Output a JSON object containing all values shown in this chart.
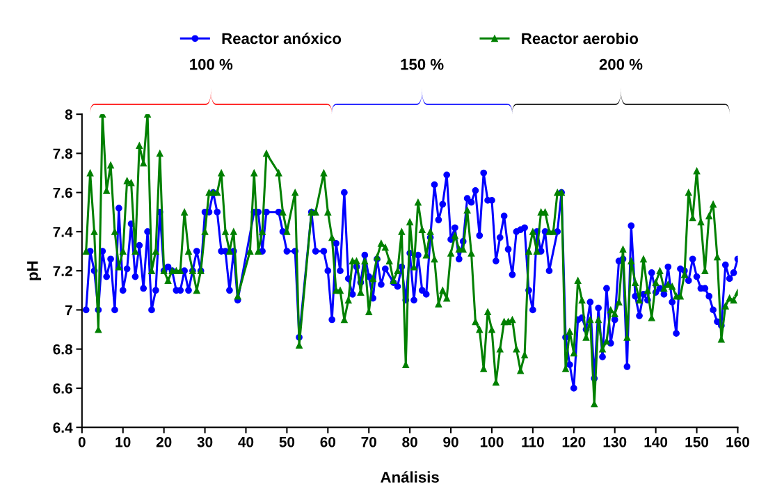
{
  "chart_data": {
    "type": "line",
    "xlabel": "Análisis",
    "ylabel": "pH",
    "xlim": [
      0,
      160
    ],
    "xticks": [
      0,
      10,
      20,
      30,
      40,
      50,
      60,
      70,
      80,
      90,
      100,
      110,
      120,
      130,
      140,
      150,
      160
    ],
    "ylim": [
      6.4,
      8
    ],
    "yticks": [
      6.4,
      6.6,
      6.8,
      7,
      7.2,
      7.4,
      7.6,
      7.8,
      8
    ],
    "grid": false,
    "legend": "top",
    "line_style": "solid",
    "annotations": [
      "100 %",
      "150 %",
      "200 %"
    ],
    "series": [
      {
        "name": "Reactor anóxico",
        "color": "#0000ff",
        "marker": "circle",
        "x": [
          1,
          2,
          3,
          4,
          5,
          6,
          7,
          8,
          9,
          10,
          11,
          12,
          13,
          14,
          15,
          16,
          17,
          18,
          19,
          20,
          21,
          22,
          23,
          24,
          25,
          26,
          27,
          28,
          29,
          30,
          31,
          32,
          33,
          34,
          35,
          36,
          37,
          38,
          42,
          43,
          44,
          45,
          48,
          49,
          50,
          52,
          53,
          56,
          57,
          59,
          60,
          61,
          62,
          63,
          64,
          65,
          66,
          67,
          68,
          69,
          70,
          71,
          72,
          73,
          74,
          76,
          77,
          78,
          79,
          80,
          81,
          82,
          83,
          84,
          85,
          86,
          87,
          88,
          89,
          90,
          91,
          92,
          93,
          94,
          95,
          96,
          97,
          98,
          99,
          100,
          101,
          102,
          103,
          104,
          105,
          106,
          107,
          108,
          109,
          110,
          111,
          112,
          113,
          114,
          116,
          117,
          118,
          119,
          120,
          121,
          122,
          123,
          124,
          125,
          126,
          127,
          128,
          129,
          130,
          131,
          132,
          133,
          134,
          135,
          136,
          137,
          138,
          139,
          140,
          141,
          142,
          143,
          144,
          145,
          146,
          147,
          148,
          149,
          150,
          151,
          152,
          153,
          154,
          155,
          156,
          157,
          158,
          159,
          160
        ],
        "values": [
          7.0,
          7.3,
          7.2,
          7.0,
          7.3,
          7.17,
          7.26,
          7.0,
          7.52,
          7.1,
          7.21,
          7.44,
          7.17,
          7.33,
          7.11,
          7.4,
          7.0,
          7.1,
          7.5,
          7.2,
          7.22,
          7.2,
          7.1,
          7.1,
          7.2,
          7.1,
          7.2,
          7.3,
          7.2,
          7.5,
          7.5,
          7.6,
          7.5,
          7.3,
          7.3,
          7.1,
          7.3,
          7.05,
          7.5,
          7.5,
          7.3,
          7.5,
          7.5,
          7.4,
          7.3,
          7.3,
          6.86,
          7.5,
          7.3,
          7.3,
          7.2,
          6.95,
          7.34,
          7.2,
          7.6,
          7.16,
          7.08,
          7.22,
          7.14,
          7.28,
          7.17,
          7.06,
          7.26,
          7.13,
          7.21,
          7.14,
          7.12,
          7.22,
          7.05,
          7.29,
          7.05,
          7.28,
          7.1,
          7.08,
          7.37,
          7.64,
          7.46,
          7.54,
          7.69,
          7.36,
          7.42,
          7.26,
          7.35,
          7.57,
          7.55,
          7.61,
          7.38,
          7.7,
          7.56,
          7.56,
          7.25,
          7.37,
          7.48,
          7.31,
          7.18,
          7.4,
          7.41,
          7.42,
          7.1,
          7.0,
          7.4,
          7.3,
          7.4,
          7.2,
          7.4,
          7.6,
          6.86,
          6.72,
          6.6,
          6.95,
          6.96,
          6.9,
          7.04,
          6.65,
          7.01,
          6.76,
          7.11,
          6.83,
          6.95,
          7.25,
          7.26,
          6.71,
          7.43,
          7.07,
          6.97,
          7.08,
          7.05,
          7.19,
          7.09,
          7.11,
          7.08,
          7.22,
          7.04,
          6.88,
          7.21,
          7.2,
          7.15,
          7.26,
          7.17,
          7.11,
          7.11,
          7.07,
          7.0,
          6.94,
          6.92,
          7.23,
          7.16,
          7.19,
          7.26
        ]
      },
      {
        "name": "Reactor aerobio",
        "color": "#008000",
        "marker": "triangle",
        "x": [
          1,
          2,
          3,
          4,
          5,
          6,
          7,
          8,
          9,
          10,
          11,
          12,
          13,
          14,
          15,
          16,
          17,
          18,
          19,
          20,
          21,
          22,
          23,
          24,
          25,
          26,
          27,
          28,
          29,
          30,
          31,
          32,
          33,
          34,
          35,
          36,
          37,
          38,
          41,
          42,
          43,
          44,
          45,
          48,
          49,
          50,
          52,
          53,
          56,
          57,
          59,
          60,
          61,
          62,
          63,
          64,
          65,
          66,
          67,
          68,
          69,
          70,
          71,
          72,
          73,
          74,
          75,
          76,
          77,
          78,
          79,
          80,
          81,
          82,
          83,
          84,
          85,
          86,
          87,
          88,
          89,
          90,
          91,
          92,
          93,
          94,
          95,
          96,
          97,
          98,
          99,
          100,
          101,
          102,
          103,
          104,
          105,
          106,
          107,
          108,
          109,
          110,
          111,
          112,
          113,
          114,
          115,
          116,
          117,
          118,
          119,
          120,
          121,
          122,
          123,
          124,
          125,
          126,
          127,
          128,
          129,
          130,
          131,
          132,
          133,
          134,
          135,
          136,
          137,
          138,
          139,
          140,
          141,
          142,
          143,
          144,
          145,
          146,
          147,
          148,
          149,
          150,
          151,
          152,
          153,
          154,
          155,
          156,
          157,
          158,
          159,
          160
        ],
        "values": [
          7.3,
          7.7,
          7.4,
          6.9,
          8.0,
          7.61,
          7.74,
          7.4,
          7.22,
          7.3,
          7.66,
          7.65,
          7.3,
          7.84,
          7.75,
          8.0,
          7.2,
          7.3,
          7.8,
          7.2,
          7.15,
          7.2,
          7.2,
          7.2,
          7.5,
          7.3,
          7.2,
          7.1,
          7.2,
          7.4,
          7.6,
          7.6,
          7.6,
          7.7,
          7.4,
          7.3,
          7.4,
          7.07,
          7.3,
          7.7,
          7.3,
          7.4,
          7.8,
          7.7,
          7.5,
          7.4,
          7.6,
          6.82,
          7.5,
          7.5,
          7.7,
          7.5,
          7.37,
          7.1,
          7.1,
          6.95,
          7.05,
          7.25,
          7.25,
          7.09,
          7.25,
          6.99,
          7.16,
          7.27,
          7.34,
          7.32,
          7.25,
          7.15,
          7.2,
          7.4,
          6.72,
          7.45,
          7.22,
          7.55,
          7.41,
          7.28,
          7.4,
          7.26,
          7.03,
          7.1,
          7.06,
          7.29,
          7.38,
          7.31,
          7.31,
          7.51,
          7.29,
          6.94,
          6.9,
          6.7,
          6.99,
          6.9,
          6.63,
          6.8,
          6.94,
          6.94,
          6.95,
          6.8,
          6.69,
          6.77,
          7.3,
          7.4,
          7.3,
          7.5,
          7.5,
          7.4,
          7.4,
          7.6,
          7.6,
          6.7,
          6.89,
          6.78,
          7.15,
          7.05,
          6.86,
          6.95,
          6.52,
          6.95,
          6.8,
          6.84,
          7.0,
          6.98,
          7.04,
          7.31,
          6.86,
          7.25,
          7.14,
          7.05,
          7.26,
          7.1,
          6.96,
          7.14,
          7.2,
          7.11,
          7.13,
          7.12,
          7.07,
          7.07,
          7.18,
          7.6,
          7.47,
          7.71,
          7.45,
          7.2,
          7.48,
          7.54,
          7.27,
          6.85,
          7.02,
          7.06,
          7.05,
          7.09
        ]
      }
    ]
  }
}
